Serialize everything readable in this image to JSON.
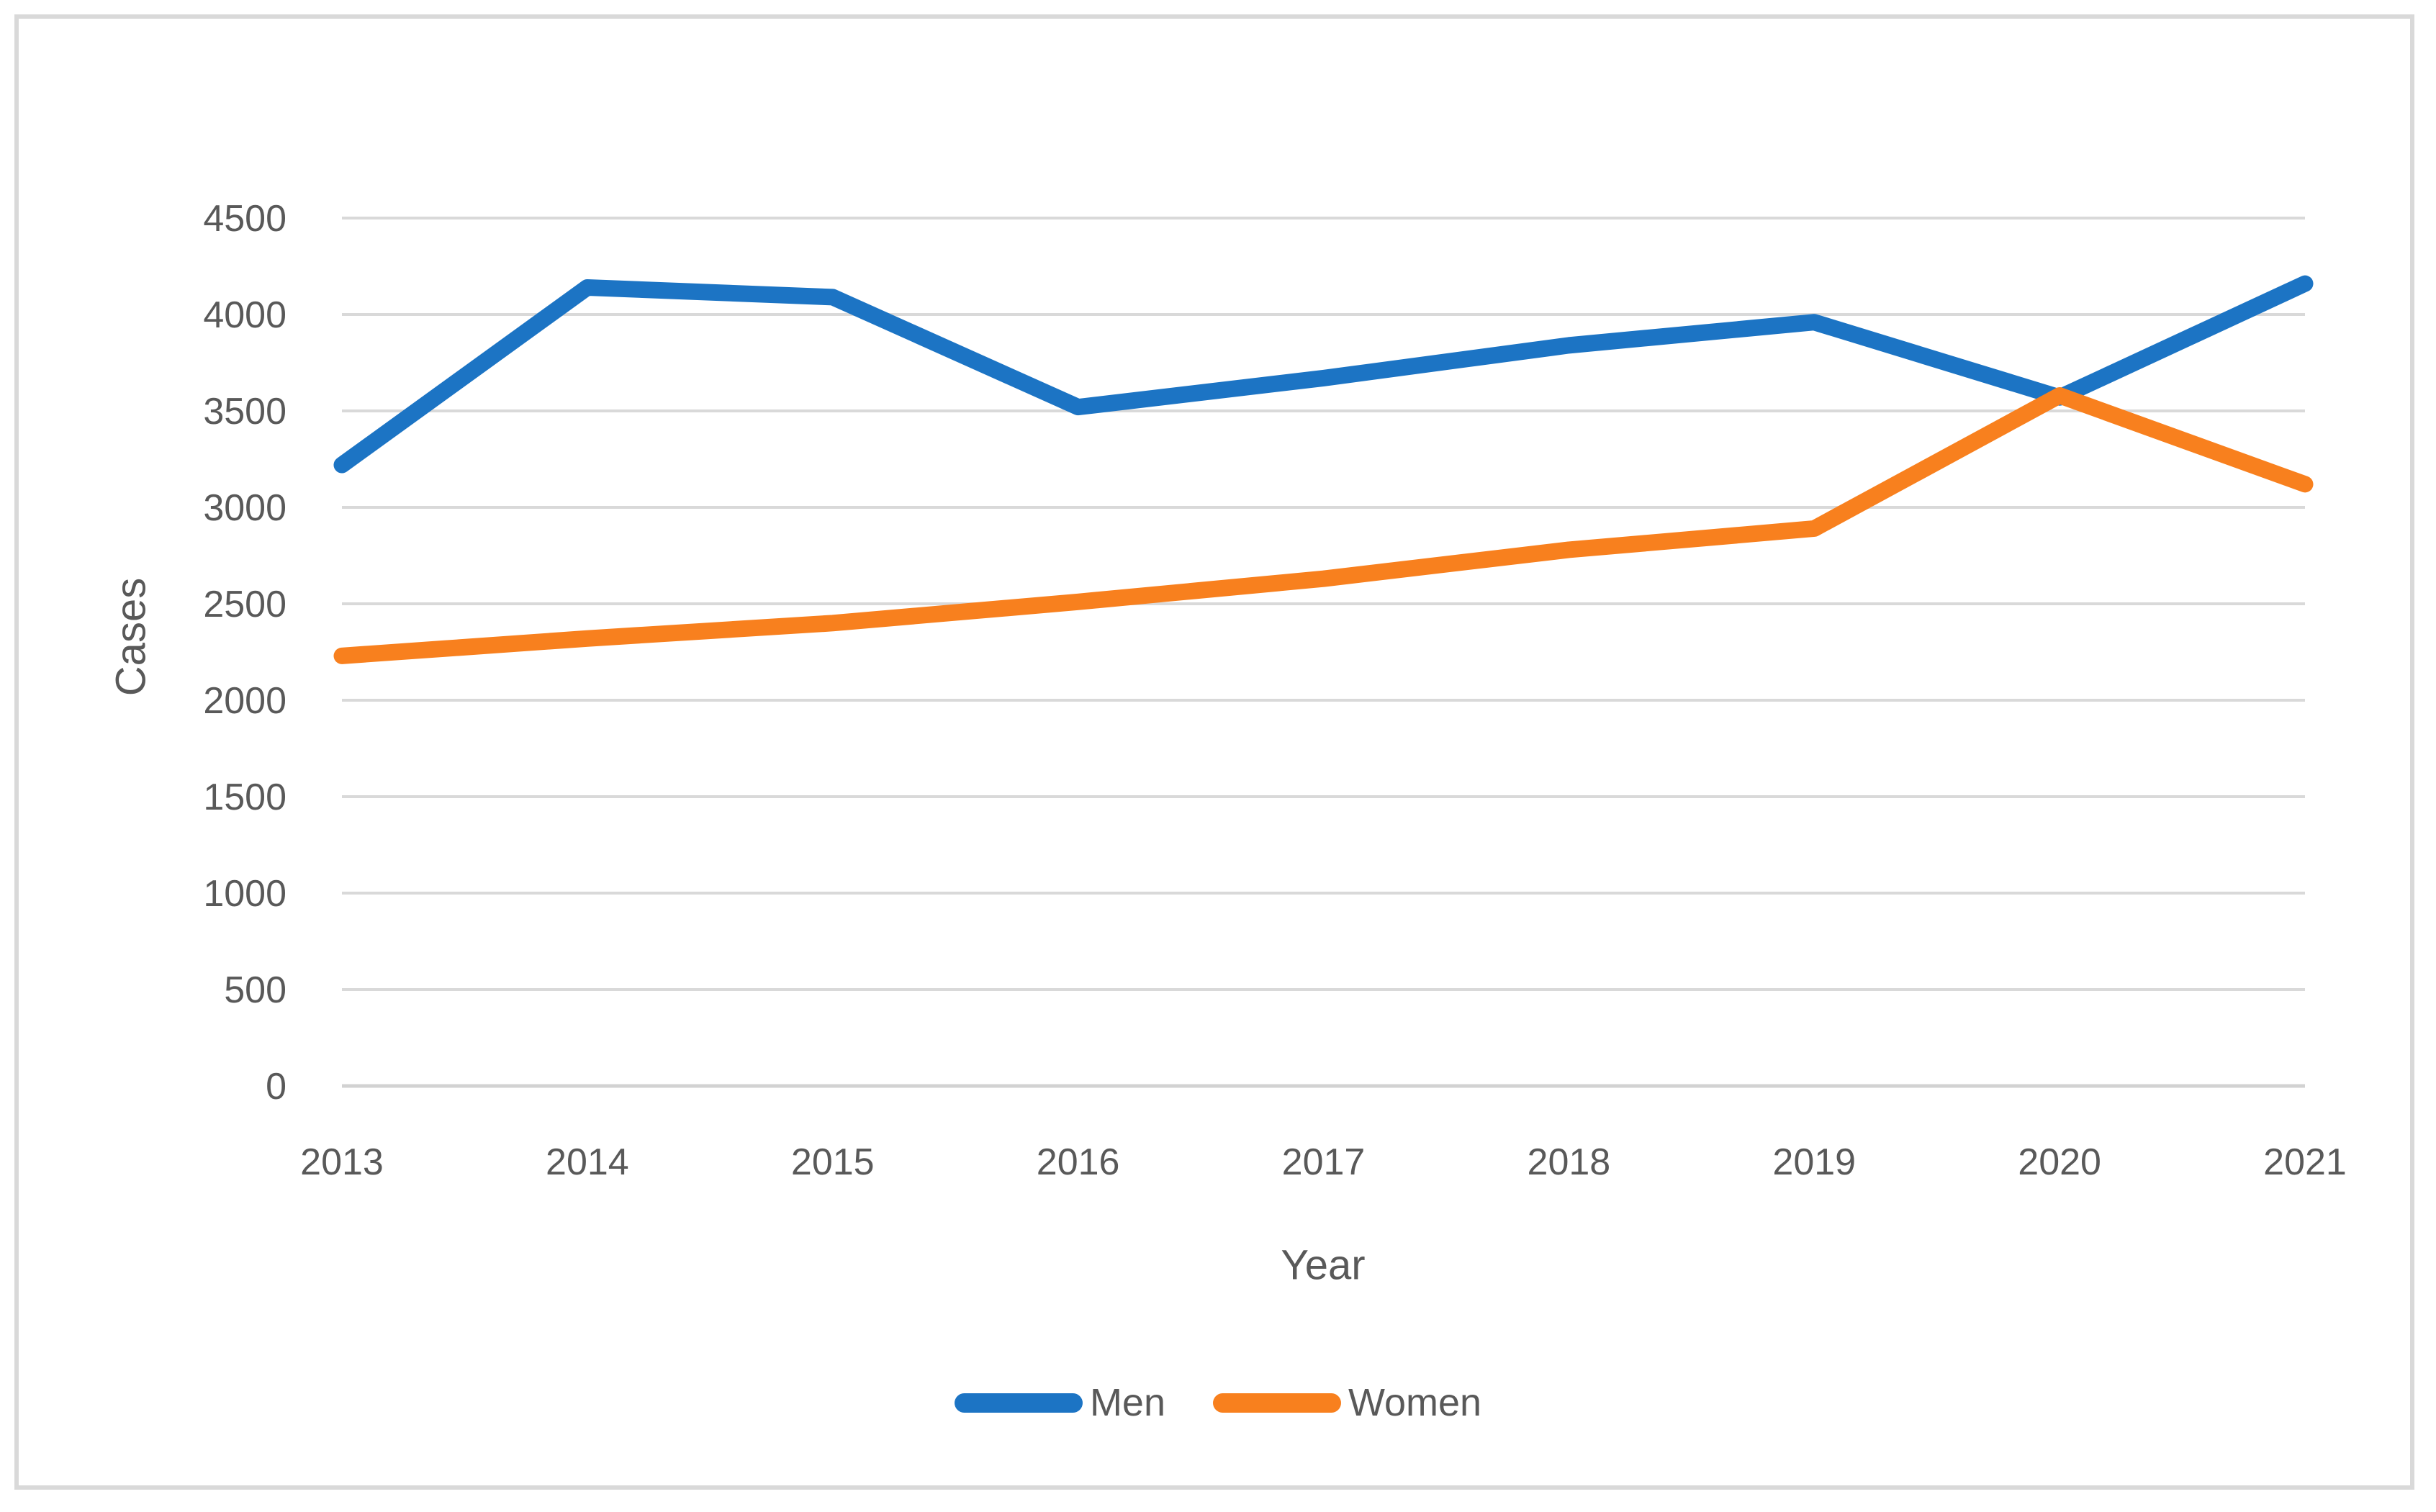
{
  "chart_data": {
    "type": "line",
    "x": [
      2013,
      2014,
      2015,
      2016,
      2017,
      2018,
      2019,
      2020,
      2021
    ],
    "series": [
      {
        "name": "Men",
        "color": "#1c74c4",
        "values": [
          3220,
          4140,
          4090,
          3520,
          3670,
          3840,
          3960,
          3570,
          4160
        ]
      },
      {
        "name": "Women",
        "color": "#f8801e",
        "values": [
          2230,
          2320,
          2400,
          2510,
          2630,
          2780,
          2890,
          3580,
          3120
        ]
      }
    ],
    "title": "",
    "xlabel": "Year",
    "ylabel": "Cases",
    "ylim": [
      0,
      4500
    ],
    "ytick_step": 500,
    "ytick_labels": [
      "0",
      "500",
      "1000",
      "1500",
      "2000",
      "2500",
      "3000",
      "3500",
      "4000",
      "4500"
    ],
    "grid": true,
    "legend_position": "bottom"
  },
  "style": {
    "gridline_color": "#d9d9d9",
    "axis_line_color": "#d2d2d2",
    "tick_label_color": "#595959",
    "frame_color": "#d9d9d9",
    "background": "#ffffff"
  }
}
